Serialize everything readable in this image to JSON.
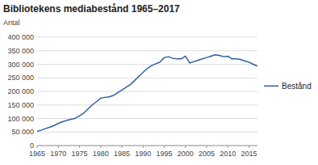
{
  "chart_data": {
    "type": "line",
    "title": "Bibliotekens mediabestånd 1965–2017",
    "ylabel": "Antal",
    "x": [
      1965,
      1966,
      1967,
      1968,
      1969,
      1970,
      1971,
      1972,
      1973,
      1974,
      1975,
      1976,
      1977,
      1978,
      1979,
      1980,
      1981,
      1982,
      1983,
      1984,
      1985,
      1986,
      1987,
      1988,
      1989,
      1990,
      1991,
      1992,
      1993,
      1994,
      1995,
      1996,
      1997,
      1998,
      1999,
      2000,
      2001,
      2002,
      2003,
      2004,
      2005,
      2006,
      2007,
      2008,
      2009,
      2010,
      2011,
      2012,
      2013,
      2014,
      2015,
      2016,
      2017
    ],
    "series": [
      {
        "name": "Bestånd",
        "color": "#2E5FA3",
        "values": [
          52000,
          57000,
          63000,
          68000,
          74000,
          82000,
          88000,
          93000,
          97000,
          101000,
          110000,
          120000,
          135000,
          150000,
          162000,
          175000,
          178000,
          180000,
          185000,
          195000,
          205000,
          215000,
          225000,
          240000,
          255000,
          270000,
          285000,
          295000,
          302000,
          308000,
          325000,
          328000,
          322000,
          320000,
          320000,
          330000,
          305000,
          310000,
          315000,
          320000,
          325000,
          330000,
          335000,
          333000,
          328000,
          330000,
          320000,
          320000,
          318000,
          312000,
          308000,
          300000,
          293000
        ]
      }
    ],
    "xlim": [
      1965,
      2017
    ],
    "ylim": [
      0,
      400000
    ],
    "xticks": [
      1965,
      1970,
      1975,
      1980,
      1985,
      1990,
      1995,
      2000,
      2005,
      2010,
      2015
    ],
    "yticks": [
      0,
      {
        "value": 50000,
        "label": "50 000"
      },
      {
        "value": 100000,
        "label": "100 000"
      },
      {
        "value": 150000,
        "label": "150 000"
      },
      {
        "value": 200000,
        "label": "200 000"
      },
      {
        "value": 250000,
        "label": "250 000"
      },
      {
        "value": 300000,
        "label": "300 000"
      },
      {
        "value": 350000,
        "label": "350 000"
      },
      {
        "value": 400000,
        "label": "400 000"
      }
    ],
    "grid": true,
    "legend": "right"
  }
}
